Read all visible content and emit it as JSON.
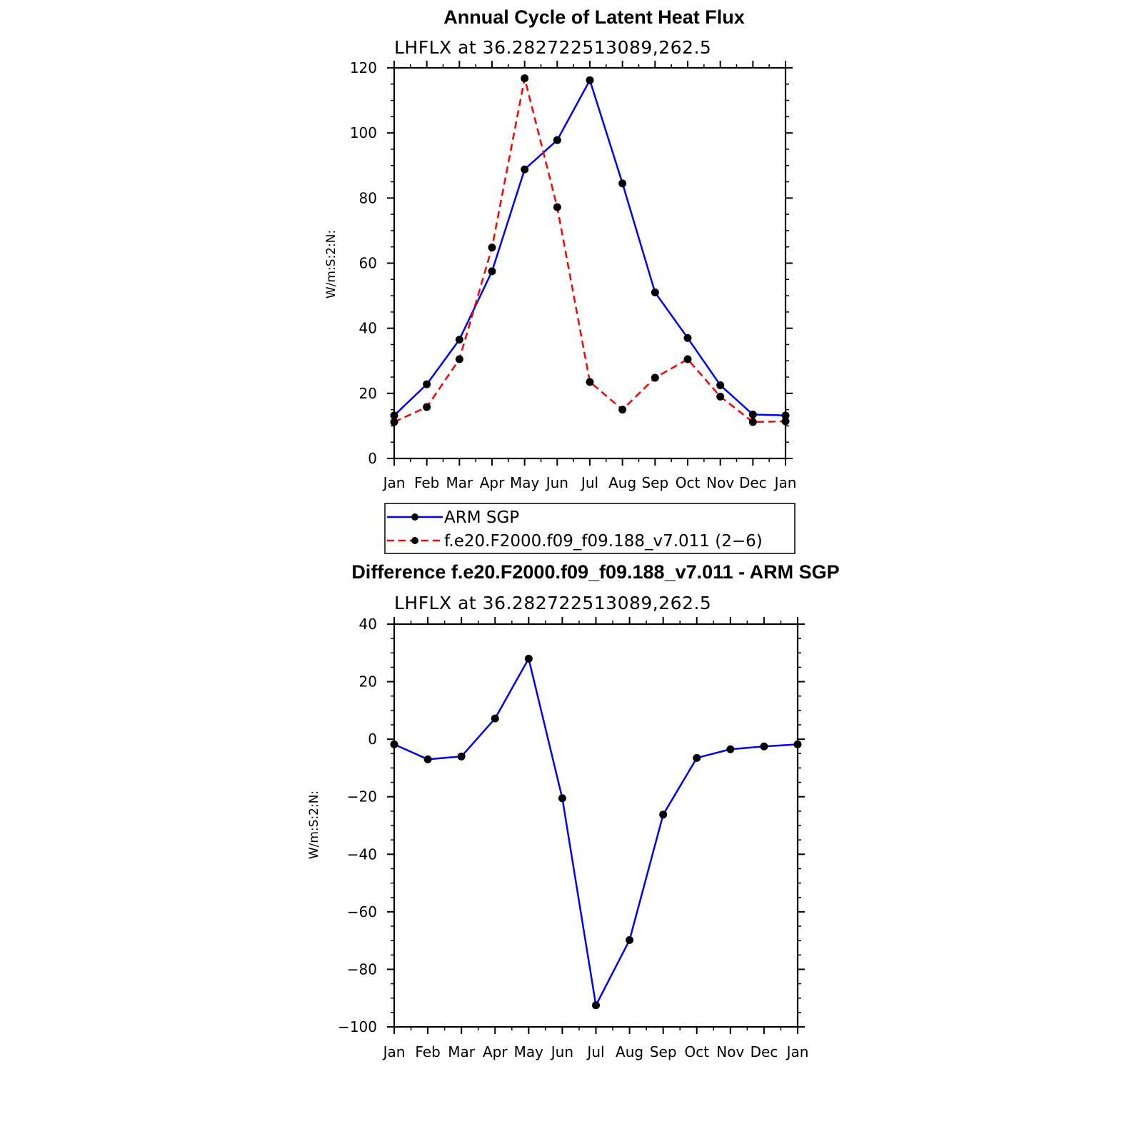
{
  "chart_data": [
    {
      "type": "line",
      "title": "Annual Cycle of Latent Heat Flux",
      "subtitle": "LHFLX  at  36.282722513089,262.5",
      "ylabel": "W/m:S:2:N:",
      "xlabel": "",
      "categories": [
        "Jan",
        "Feb",
        "Mar",
        "Apr",
        "May",
        "Jun",
        "Jul",
        "Aug",
        "Sep",
        "Oct",
        "Nov",
        "Dec",
        "Jan"
      ],
      "yticks": [
        0,
        20,
        40,
        60,
        80,
        100,
        120
      ],
      "ylim": [
        0,
        120
      ],
      "series": [
        {
          "name": "ARM SGP",
          "color": "#0000ff",
          "dash": "solid",
          "values": [
            13.2,
            22.8,
            36.5,
            57.5,
            88.8,
            97.8,
            116.2,
            84.5,
            51.0,
            37.0,
            22.5,
            13.5,
            13.2
          ]
        },
        {
          "name": "f.e20.F2000.f09_f09.188_v7.011 (2-6)",
          "color": "#ff0000",
          "dash": "dashed",
          "values": [
            11.2,
            15.8,
            30.5,
            64.8,
            116.8,
            77.2,
            23.5,
            15.0,
            24.8,
            30.5,
            19.0,
            11.2,
            11.4
          ]
        }
      ],
      "legend": {
        "placement": "below",
        "entries": [
          "ARM SGP",
          "f.e20.F2000.f09_f09.188_v7.011 (2−6)"
        ]
      }
    },
    {
      "type": "line",
      "title": "Difference f.e20.F2000.f09_f09.188_v7.011 - ARM SGP",
      "subtitle": "LHFLX  at  36.282722513089,262.5",
      "ylabel": "W/m:S:2:N:",
      "xlabel": "",
      "categories": [
        "Jan",
        "Feb",
        "Mar",
        "Apr",
        "May",
        "Jun",
        "Jul",
        "Aug",
        "Sep",
        "Oct",
        "Nov",
        "Dec",
        "Jan"
      ],
      "yticks": [
        40,
        20,
        0,
        -20,
        -40,
        -60,
        -80,
        -100
      ],
      "ytick_labels": [
        "40",
        "20",
        "0",
        "−20",
        "−40",
        "−60",
        "−80",
        "−100"
      ],
      "ylim": [
        -100,
        40
      ],
      "series": [
        {
          "name": "Difference",
          "color": "#0000ff",
          "dash": "solid",
          "values": [
            -1.8,
            -7.0,
            -6.0,
            7.2,
            28.0,
            -20.5,
            -92.5,
            -69.8,
            -26.2,
            -6.5,
            -3.5,
            -2.5,
            -1.8
          ]
        }
      ]
    }
  ]
}
